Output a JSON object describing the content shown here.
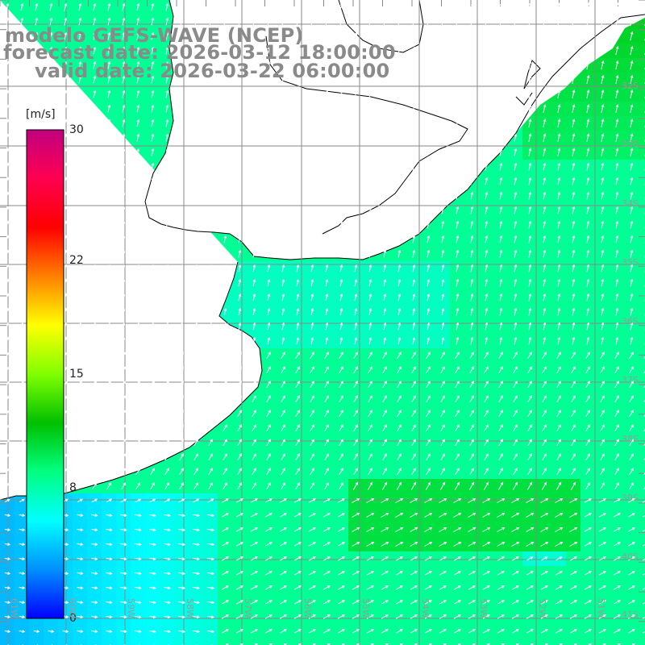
{
  "title": {
    "model": "modelo GEFS-WAVE (NCEP)",
    "forecast": "forecast date: 2026-03-12 18:00:00",
    "valid": "valid date: 2026-03-22 06:00:00"
  },
  "colorbar": {
    "unit": "[m/s]",
    "ticks": [
      {
        "label": "30",
        "value": 30
      },
      {
        "label": "22",
        "value": 22
      },
      {
        "label": "15",
        "value": 15
      },
      {
        "label": "8",
        "value": 8
      },
      {
        "label": "0",
        "value": 0
      }
    ],
    "range": [
      0,
      30
    ],
    "stops": [
      "#0000ff",
      "#0090ff",
      "#00ffff",
      "#00ff80",
      "#00c000",
      "#80ff00",
      "#ffff00",
      "#ff8000",
      "#ff0000",
      "#ff0050",
      "#c00080"
    ]
  },
  "lat_labels": [
    "32S",
    "33S",
    "34S",
    "35S",
    "36S",
    "37S",
    "38S",
    "39S",
    "40S",
    "41S"
  ],
  "lon_labels": [
    "61W",
    "60W",
    "59W",
    "58W",
    "57W",
    "56W",
    "55W",
    "54W",
    "53W",
    "52W",
    "51W"
  ],
  "map": {
    "lon_range": [
      -62,
      -51
    ],
    "lat_range": [
      -41.5,
      -31.5
    ],
    "grid": true,
    "land_color": "#ffffff",
    "coast_color": "#000000",
    "gridline_color": "#888888"
  }
}
